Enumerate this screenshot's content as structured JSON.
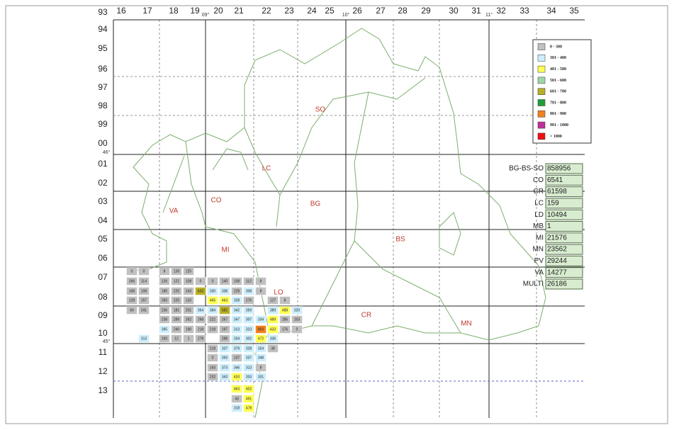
{
  "map": {
    "column_labels": [
      "16",
      "17",
      "18",
      "19",
      "20",
      "21",
      "22",
      "23",
      "24",
      "25",
      "26",
      "27",
      "28",
      "29",
      "30",
      "31",
      "32",
      "33",
      "34",
      "35"
    ],
    "row_labels": [
      "93",
      "94",
      "95",
      "96",
      "97",
      "98",
      "99",
      "00",
      "01",
      "02",
      "03",
      "04",
      "05",
      "06",
      "07",
      "08",
      "09",
      "10",
      "11",
      "12",
      "13"
    ],
    "degree_labels": [
      "09°",
      "10°",
      "11°",
      "46°",
      "45°"
    ],
    "provinces": [
      "SO",
      "LC",
      "VA",
      "CO",
      "BG",
      "BS",
      "MI",
      "LO",
      "CR",
      "MN"
    ],
    "legend": [
      {
        "label": "0  -  300",
        "color": "#c0c0c0"
      },
      {
        "label": "301 - 400",
        "color": "#cdeefc"
      },
      {
        "label": "401 - 500",
        "color": "#ffff55"
      },
      {
        "label": "501 - 600",
        "color": "#9fd6a8"
      },
      {
        "label": "601 - 700",
        "color": "#b9b027"
      },
      {
        "label": "701 - 800",
        "color": "#1e9e3a"
      },
      {
        "label": "801 - 900",
        "color": "#f08020"
      },
      {
        "label": "901 - 1000",
        "color": "#c0309a"
      },
      {
        "label": "> 1000",
        "color": "#ee1010"
      }
    ],
    "totals": [
      {
        "code": "BG-BS-SO",
        "value": 858956
      },
      {
        "code": "CO",
        "value": 6541
      },
      {
        "code": "CR",
        "value": 61598
      },
      {
        "code": "LC",
        "value": 159
      },
      {
        "code": "LD",
        "value": 10494
      },
      {
        "code": "MB",
        "value": 1
      },
      {
        "code": "MI",
        "value": 21576
      },
      {
        "code": "MN",
        "value": 23562
      },
      {
        "code": "PV",
        "value": 29244
      },
      {
        "code": "VA",
        "value": 14277
      },
      {
        "code": "MULTI",
        "value": 26186
      }
    ],
    "cells": [
      [
        0,
        0,
        8,
        139,
        125,
        null,
        null,
        null,
        null,
        null,
        null,
        null,
        null,
        null
      ],
      [
        266,
        114,
        126,
        121,
        108,
        0,
        0,
        140,
        108,
        112,
        8,
        null,
        null,
        null
      ],
      [
        168,
        108,
        180,
        220,
        243,
        633,
        330,
        338,
        228,
        308,
        8,
        null,
        null,
        null
      ],
      [
        128,
        157,
        283,
        220,
        133,
        null,
        465,
        463,
        328,
        276,
        null,
        127,
        8,
        null
      ],
      [
        69,
        241,
        236,
        181,
        201,
        364,
        384,
        682,
        342,
        359,
        null,
        389,
        488,
        320
      ],
      [
        null,
        null,
        238,
        289,
        262,
        268,
        222,
        267,
        347,
        307,
        334,
        489,
        286,
        203
      ],
      [
        null,
        null,
        395,
        240,
        190,
        218,
        218,
        197,
        313,
        323,
        803,
        433,
        176,
        0
      ],
      [
        null,
        313,
        193,
        12,
        1,
        278,
        null,
        288,
        334,
        302,
        472,
        336,
        null,
        null
      ],
      [
        null,
        null,
        null,
        null,
        null,
        null,
        218,
        337,
        379,
        328,
        324,
        38,
        null,
        null
      ],
      [
        null,
        null,
        null,
        null,
        null,
        null,
        0,
        393,
        137,
        337,
        348,
        null,
        null,
        null
      ],
      [
        null,
        null,
        null,
        null,
        null,
        null,
        163,
        373,
        346,
        313,
        8,
        null,
        null,
        null
      ],
      [
        null,
        null,
        null,
        null,
        null,
        null,
        232,
        343,
        433,
        333,
        331,
        null,
        null,
        null
      ],
      [
        null,
        null,
        null,
        null,
        null,
        null,
        null,
        null,
        463,
        402,
        null,
        null,
        null,
        null
      ],
      [
        null,
        null,
        null,
        null,
        null,
        null,
        null,
        null,
        43,
        491,
        null,
        null,
        null,
        null
      ],
      [
        null,
        null,
        null,
        null,
        null,
        null,
        null,
        null,
        318,
        478,
        null,
        null,
        null,
        null
      ]
    ]
  }
}
